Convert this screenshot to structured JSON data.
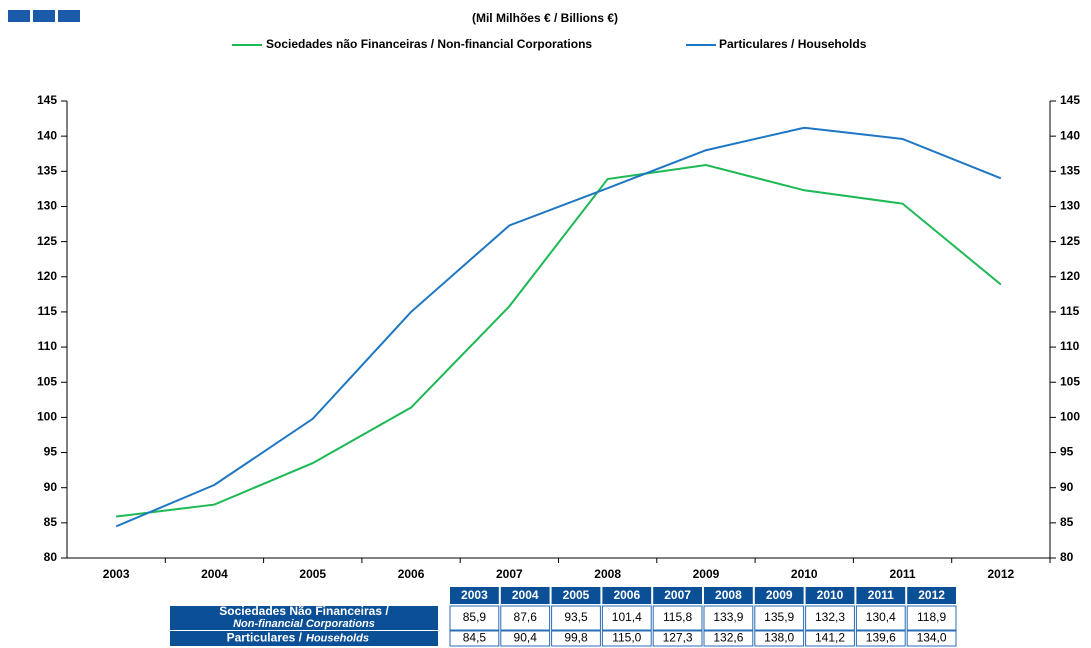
{
  "chart_data": {
    "type": "line",
    "title": "(Mil Milhões € / Billions €)",
    "categories": [
      "2003",
      "2004",
      "2005",
      "2006",
      "2007",
      "2008",
      "2009",
      "2010",
      "2011",
      "2012"
    ],
    "series": [
      {
        "name": "Sociedades não Financeiras / Non-financial Corporations",
        "color": "#1db954",
        "values": [
          85.9,
          87.6,
          93.5,
          101.4,
          115.8,
          133.9,
          135.9,
          132.3,
          130.4,
          118.9
        ],
        "value_labels": [
          "85,9",
          "87,6",
          "93,5",
          "101,4",
          "115,8",
          "133,9",
          "135,9",
          "132,3",
          "130,4",
          "118,9"
        ]
      },
      {
        "name": "Particulares / Households",
        "color": "#1f77c4",
        "values": [
          84.5,
          90.4,
          99.8,
          115.0,
          127.3,
          132.6,
          138.0,
          141.2,
          139.6,
          134.0
        ],
        "value_labels": [
          "84,5",
          "90,4",
          "99,8",
          "115,0",
          "127,3",
          "132,6",
          "138,0",
          "141,2",
          "139,6",
          "134,0"
        ]
      }
    ],
    "ylim": [
      80,
      145
    ],
    "yticks": [
      80,
      85,
      90,
      95,
      100,
      105,
      110,
      115,
      120,
      125,
      130,
      135,
      140,
      145
    ],
    "y2lim": [
      80,
      145
    ],
    "y2ticks": [
      80,
      85,
      90,
      95,
      100,
      105,
      110,
      115,
      120,
      125,
      130,
      135,
      140,
      145
    ],
    "grid": false,
    "legend": "top"
  },
  "table": {
    "row_labels": [
      {
        "main": "Sociedades Não Financeiras /",
        "sub": "Non-financial Corporations"
      },
      {
        "main": "Particulares /",
        "sub": "Households"
      }
    ]
  }
}
